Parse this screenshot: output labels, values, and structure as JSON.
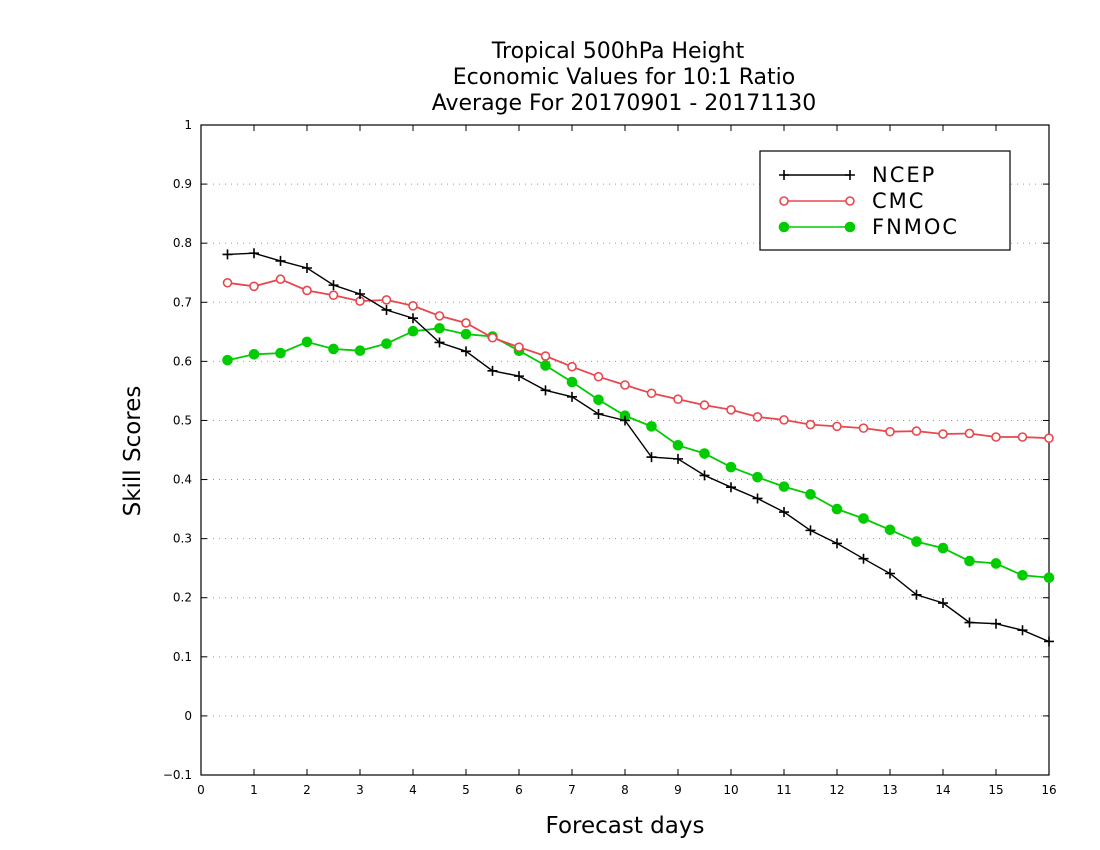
{
  "chart_data": {
    "type": "line",
    "title": [
      "Tropical 500hPa Height",
      "Economic Values for 10:1 Ratio",
      "Average For 20170901 - 20171130"
    ],
    "xlabel": "Forecast days",
    "ylabel": "Skill Scores",
    "xlim": [
      0,
      16
    ],
    "ylim": [
      -0.1,
      1
    ],
    "x_ticks": [
      0,
      1,
      2,
      3,
      4,
      5,
      6,
      7,
      8,
      9,
      10,
      11,
      12,
      13,
      14,
      15,
      16
    ],
    "y_ticks": [
      -0.1,
      0,
      0.1,
      0.2,
      0.3,
      0.4,
      0.5,
      0.6,
      0.7,
      0.8,
      0.9,
      1
    ],
    "y_tick_labels": [
      "−0.1",
      "0",
      "0.1",
      "0.2",
      "0.3",
      "0.4",
      "0.5",
      "0.6",
      "0.7",
      "0.8",
      "0.9",
      "1"
    ],
    "grid": "horizontal dotted",
    "legend_position": "top-right",
    "x": [
      0.5,
      1,
      1.5,
      2,
      2.5,
      3,
      3.5,
      4,
      4.5,
      5,
      5.5,
      6,
      6.5,
      7,
      7.5,
      8,
      8.5,
      9,
      9.5,
      10,
      10.5,
      11,
      11.5,
      12,
      12.5,
      13,
      13.5,
      14,
      14.5,
      15,
      15.5,
      16
    ],
    "series": [
      {
        "name": "NCEP",
        "color": "#000000",
        "marker": "plus",
        "values": [
          0.781,
          0.783,
          0.77,
          0.758,
          0.729,
          0.714,
          0.687,
          0.673,
          0.632,
          0.617,
          0.584,
          0.575,
          0.551,
          0.54,
          0.511,
          0.5,
          0.438,
          0.435,
          0.407,
          0.387,
          0.368,
          0.345,
          0.314,
          0.292,
          0.266,
          0.241,
          0.205,
          0.191,
          0.158,
          0.156,
          0.145,
          0.126
        ]
      },
      {
        "name": "CMC",
        "color": "#e8484d",
        "marker": "open-circle",
        "values": [
          0.733,
          0.727,
          0.739,
          0.72,
          0.712,
          0.702,
          0.704,
          0.694,
          0.677,
          0.665,
          0.64,
          0.624,
          0.609,
          0.591,
          0.574,
          0.56,
          0.546,
          0.536,
          0.526,
          0.518,
          0.506,
          0.501,
          0.493,
          0.49,
          0.487,
          0.481,
          0.482,
          0.477,
          0.478,
          0.472,
          0.472,
          0.47
        ]
      },
      {
        "name": "FNMOC",
        "color": "#00cc00",
        "marker": "filled-circle",
        "values": [
          0.602,
          0.612,
          0.614,
          0.633,
          0.621,
          0.618,
          0.63,
          0.651,
          0.656,
          0.646,
          0.642,
          0.618,
          0.593,
          0.565,
          0.535,
          0.508,
          0.49,
          0.458,
          0.444,
          0.421,
          0.404,
          0.388,
          0.375,
          0.35,
          0.334,
          0.315,
          0.295,
          0.284,
          0.262,
          0.258,
          0.238,
          0.234
        ]
      }
    ]
  }
}
